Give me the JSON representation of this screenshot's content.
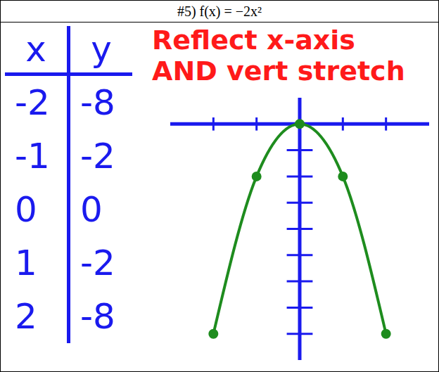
{
  "header": {
    "title": "#5) f(x) = −2x²"
  },
  "table": {
    "columns": [
      "x",
      "y"
    ],
    "rows": [
      [
        -2,
        -8
      ],
      [
        -1,
        -2
      ],
      [
        0,
        0
      ],
      [
        1,
        -2
      ],
      [
        2,
        -8
      ]
    ]
  },
  "annotation": [
    "Reflect x-axis",
    "AND vert stretch"
  ],
  "chart_data": {
    "type": "line",
    "x": [
      -2,
      -1,
      0,
      1,
      2
    ],
    "values": [
      -8,
      -2,
      0,
      -2,
      -8
    ],
    "color": "#1e8c1e",
    "xlim": [
      -3,
      3
    ],
    "ylim": [
      -9,
      1
    ],
    "xticks": [
      -2,
      -1,
      1,
      2
    ],
    "yticks": [
      -8,
      -7,
      -6,
      -5,
      -4,
      -3,
      -2,
      -1
    ],
    "tick_labels": false,
    "marker": "circle"
  }
}
